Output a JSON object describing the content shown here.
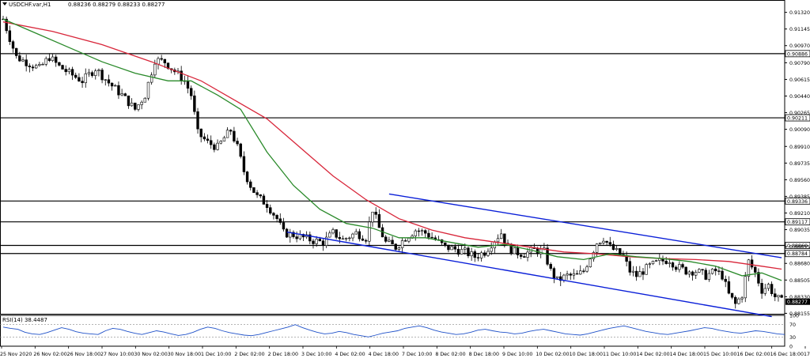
{
  "header": {
    "symbol": "USDCHF.var,H1",
    "ohlc": "0.88236 0.88279 0.88233 0.88277"
  },
  "rsi_label": "RSI(14) 38.4487",
  "colors": {
    "bull": "#000000",
    "bear": "#000000",
    "ma_fast": "#2a8a2a",
    "ma_slow": "#d8263a",
    "channel": "#0a1fd8",
    "level": "#000000",
    "rsi": "#1e50c8"
  },
  "chart_data": [
    {
      "type": "candlestick",
      "title": "USDCHF.var,H1",
      "ylim": [
        0.8815,
        0.9145
      ],
      "price_ticks": [
        "0.91320",
        "0.91145",
        "0.90970",
        "0.90790",
        "0.90615",
        "0.90440",
        "0.90265",
        "0.90090",
        "0.89910",
        "0.89735",
        "0.89560",
        "0.89385",
        "0.89210",
        "0.89035",
        "0.88855",
        "0.88680",
        "0.88505",
        "0.88330",
        "0.88155"
      ],
      "levels": [
        {
          "label": "0.90886",
          "value": 0.90886
        },
        {
          "label": "0.90211",
          "value": 0.90211
        },
        {
          "label": "0.89336",
          "value": 0.89336
        },
        {
          "label": "0.89117",
          "value": 0.89117
        },
        {
          "label": "0.88869",
          "value": 0.88869
        },
        {
          "label": "0.88784",
          "value": 0.88784
        }
      ],
      "current_price": {
        "label": "0.88277",
        "value": 0.88277
      },
      "time_labels": [
        "25 Nov 2020",
        "26 Nov 02:00",
        "26 Nov 18:00",
        "27 Nov 10:00",
        "30 Nov 02:00",
        "30 Nov 18:00",
        "1 Dec 10:00",
        "2 Dec 02:00",
        "2 Dec 18:00",
        "3 Dec 10:00",
        "4 Dec 02:00",
        "4 Dec 18:00",
        "7 Dec 10:00",
        "8 Dec 02:00",
        "8 Dec 18:00",
        "9 Dec 10:00",
        "10 Dec 02:00",
        "10 Dec 18:00",
        "11 Dec 10:00",
        "14 Dec 02:00",
        "14 Dec 18:00",
        "15 Dec 10:00",
        "16 Dec 02:00",
        "16 Dec 18:00",
        "17 Dec 10:00"
      ],
      "price_path": [
        [
          0,
          0.9125
        ],
        [
          2,
          0.9105
        ],
        [
          4,
          0.9085
        ],
        [
          8,
          0.9078
        ],
        [
          11,
          0.9073
        ],
        [
          14,
          0.9085
        ],
        [
          17,
          0.9075
        ],
        [
          20,
          0.9068
        ],
        [
          24,
          0.906
        ],
        [
          28,
          0.9073
        ],
        [
          32,
          0.9058
        ],
        [
          36,
          0.9045
        ],
        [
          40,
          0.903
        ],
        [
          43,
          0.9045
        ],
        [
          46,
          0.9082
        ],
        [
          49,
          0.908
        ],
        [
          52,
          0.907
        ],
        [
          55,
          0.906
        ],
        [
          57,
          0.9045
        ],
        [
          59,
          0.9005
        ],
        [
          62,
          0.8995
        ],
        [
          65,
          0.899
        ],
        [
          67,
          0.9
        ],
        [
          69,
          0.9008
        ],
        [
          71,
          0.899
        ],
        [
          73,
          0.8965
        ],
        [
          75,
          0.895
        ],
        [
          77,
          0.8938
        ],
        [
          80,
          0.893
        ],
        [
          83,
          0.8915
        ],
        [
          85,
          0.89
        ],
        [
          88,
          0.8898
        ],
        [
          91,
          0.8895
        ],
        [
          94,
          0.8892
        ],
        [
          97,
          0.889
        ],
        [
          100,
          0.89
        ],
        [
          103,
          0.8893
        ],
        [
          107,
          0.89
        ],
        [
          110,
          0.8895
        ],
        [
          112,
          0.8925
        ],
        [
          114,
          0.8905
        ],
        [
          116,
          0.889
        ],
        [
          119,
          0.8885
        ],
        [
          122,
          0.8895
        ],
        [
          125,
          0.8903
        ],
        [
          128,
          0.89
        ],
        [
          131,
          0.8893
        ],
        [
          134,
          0.8885
        ],
        [
          137,
          0.8883
        ],
        [
          140,
          0.888
        ],
        [
          143,
          0.8875
        ],
        [
          146,
          0.888
        ],
        [
          149,
          0.8893
        ],
        [
          151,
          0.89
        ],
        [
          153,
          0.8885
        ],
        [
          155,
          0.888
        ],
        [
          158,
          0.8878
        ],
        [
          161,
          0.8882
        ],
        [
          164,
          0.888
        ],
        [
          166,
          0.886
        ],
        [
          168,
          0.885
        ],
        [
          171,
          0.8855
        ],
        [
          174,
          0.8855
        ],
        [
          176,
          0.886
        ],
        [
          178,
          0.8875
        ],
        [
          180,
          0.889
        ],
        [
          182,
          0.8895
        ],
        [
          184,
          0.8885
        ],
        [
          186,
          0.888
        ],
        [
          188,
          0.8875
        ],
        [
          190,
          0.886
        ],
        [
          192,
          0.8855
        ],
        [
          194,
          0.886
        ],
        [
          196,
          0.8865
        ],
        [
          199,
          0.887
        ],
        [
          202,
          0.8872
        ],
        [
          204,
          0.8865
        ],
        [
          207,
          0.886
        ],
        [
          210,
          0.886
        ],
        [
          213,
          0.8855
        ],
        [
          216,
          0.886
        ],
        [
          218,
          0.8855
        ],
        [
          220,
          0.8835
        ],
        [
          222,
          0.8825
        ],
        [
          224,
          0.8835
        ],
        [
          226,
          0.887
        ],
        [
          228,
          0.8858
        ],
        [
          230,
          0.884
        ],
        [
          232,
          0.8845
        ],
        [
          234,
          0.8833
        ],
        [
          236,
          0.8828
        ]
      ],
      "ma_fast": [
        [
          0,
          0.9125
        ],
        [
          10,
          0.911
        ],
        [
          20,
          0.9095
        ],
        [
          30,
          0.908
        ],
        [
          40,
          0.9068
        ],
        [
          50,
          0.906
        ],
        [
          57,
          0.906
        ],
        [
          65,
          0.9045
        ],
        [
          72,
          0.903
        ],
        [
          80,
          0.8985
        ],
        [
          88,
          0.895
        ],
        [
          96,
          0.8925
        ],
        [
          104,
          0.891
        ],
        [
          112,
          0.8905
        ],
        [
          120,
          0.8895
        ],
        [
          128,
          0.8895
        ],
        [
          136,
          0.889
        ],
        [
          144,
          0.8885
        ],
        [
          152,
          0.8888
        ],
        [
          160,
          0.8882
        ],
        [
          168,
          0.8875
        ],
        [
          176,
          0.8872
        ],
        [
          184,
          0.8878
        ],
        [
          192,
          0.8875
        ],
        [
          200,
          0.8873
        ],
        [
          208,
          0.887
        ],
        [
          216,
          0.8865
        ],
        [
          224,
          0.8855
        ],
        [
          230,
          0.8858
        ],
        [
          236,
          0.885
        ]
      ],
      "ma_slow": [
        [
          0,
          0.9122
        ],
        [
          15,
          0.9112
        ],
        [
          30,
          0.9098
        ],
        [
          45,
          0.908
        ],
        [
          60,
          0.906
        ],
        [
          70,
          0.904
        ],
        [
          80,
          0.902
        ],
        [
          90,
          0.899
        ],
        [
          100,
          0.896
        ],
        [
          110,
          0.8935
        ],
        [
          120,
          0.8915
        ],
        [
          130,
          0.8903
        ],
        [
          140,
          0.8895
        ],
        [
          150,
          0.889
        ],
        [
          160,
          0.8885
        ],
        [
          170,
          0.888
        ],
        [
          180,
          0.8878
        ],
        [
          190,
          0.8875
        ],
        [
          200,
          0.8873
        ],
        [
          210,
          0.8872
        ],
        [
          220,
          0.887
        ],
        [
          230,
          0.8865
        ],
        [
          236,
          0.8862
        ]
      ],
      "channel_upper": [
        [
          117,
          0.8941
        ],
        [
          236,
          0.8874
        ]
      ],
      "channel_lower": [
        [
          86,
          0.8901
        ],
        [
          233,
          0.8812
        ]
      ]
    },
    {
      "type": "line",
      "title": "RSI(14) 38.4487",
      "ylim": [
        0,
        100
      ],
      "ticks": [
        "100",
        "70",
        "30",
        "0"
      ],
      "levels": [
        70,
        30
      ],
      "values": [
        62,
        58,
        55,
        45,
        40,
        38,
        44,
        52,
        60,
        55,
        47,
        42,
        40,
        38,
        50,
        58,
        55,
        48,
        42,
        38,
        44,
        50,
        46,
        40,
        35,
        38,
        45,
        55,
        62,
        58,
        50,
        44,
        40,
        36,
        34,
        38,
        44,
        50,
        56,
        62,
        70,
        60,
        52,
        45,
        40,
        42,
        48,
        44,
        38,
        34,
        30,
        36,
        42,
        46,
        50,
        58,
        62,
        66,
        60,
        52,
        46,
        42,
        38,
        40,
        45,
        52,
        55,
        50,
        46,
        44,
        40,
        42,
        48,
        52,
        55,
        50,
        45,
        40,
        38,
        36,
        40,
        46,
        52,
        58,
        62,
        66,
        60,
        54,
        48,
        44,
        40,
        38,
        42,
        46,
        50,
        55,
        60,
        58,
        52,
        48,
        44,
        42,
        46,
        50,
        48,
        44,
        40,
        38
      ]
    }
  ]
}
